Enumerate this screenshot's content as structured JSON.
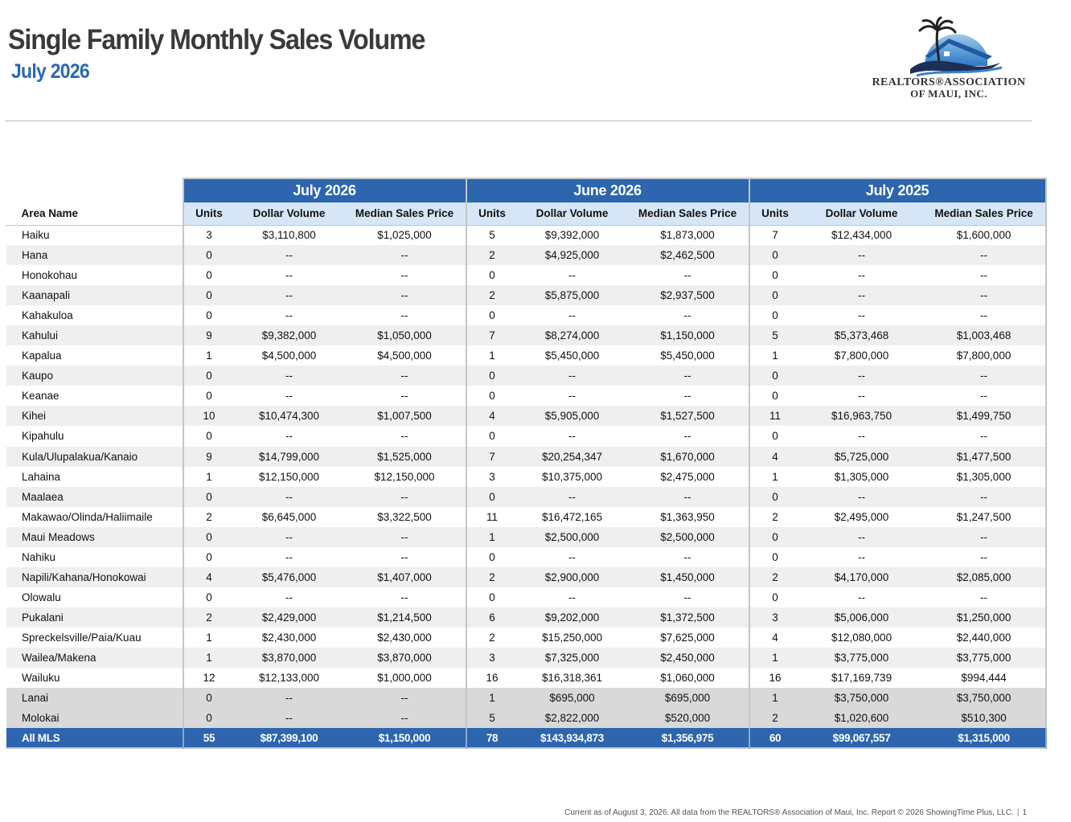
{
  "header": {
    "title": "Single Family Monthly Sales Volume",
    "subtitle": "July 2026"
  },
  "logo": {
    "line1": "REALTORS®ASSOCIATION",
    "line2": "OF MAUI, INC.",
    "icon": "palm-house-wave-logo"
  },
  "table": {
    "area_header": "Area Name",
    "periods": [
      "July 2026",
      "June 2026",
      "July 2025"
    ],
    "column_headers": [
      "Units",
      "Dollar Volume",
      "Median Sales Price"
    ],
    "rows": [
      {
        "area": "Haiku",
        "cells": [
          "3",
          "$3,110,800",
          "$1,025,000",
          "5",
          "$9,392,000",
          "$1,873,000",
          "7",
          "$12,434,000",
          "$1,600,000"
        ]
      },
      {
        "area": "Hana",
        "cells": [
          "0",
          "--",
          "--",
          "2",
          "$4,925,000",
          "$2,462,500",
          "0",
          "--",
          "--"
        ]
      },
      {
        "area": "Honokohau",
        "cells": [
          "0",
          "--",
          "--",
          "0",
          "--",
          "--",
          "0",
          "--",
          "--"
        ]
      },
      {
        "area": "Kaanapali",
        "cells": [
          "0",
          "--",
          "--",
          "2",
          "$5,875,000",
          "$2,937,500",
          "0",
          "--",
          "--"
        ]
      },
      {
        "area": "Kahakuloa",
        "cells": [
          "0",
          "--",
          "--",
          "0",
          "--",
          "--",
          "0",
          "--",
          "--"
        ]
      },
      {
        "area": "Kahului",
        "cells": [
          "9",
          "$9,382,000",
          "$1,050,000",
          "7",
          "$8,274,000",
          "$1,150,000",
          "5",
          "$5,373,468",
          "$1,003,468"
        ]
      },
      {
        "area": "Kapalua",
        "cells": [
          "1",
          "$4,500,000",
          "$4,500,000",
          "1",
          "$5,450,000",
          "$5,450,000",
          "1",
          "$7,800,000",
          "$7,800,000"
        ]
      },
      {
        "area": "Kaupo",
        "cells": [
          "0",
          "--",
          "--",
          "0",
          "--",
          "--",
          "0",
          "--",
          "--"
        ]
      },
      {
        "area": "Keanae",
        "cells": [
          "0",
          "--",
          "--",
          "0",
          "--",
          "--",
          "0",
          "--",
          "--"
        ]
      },
      {
        "area": "Kihei",
        "cells": [
          "10",
          "$10,474,300",
          "$1,007,500",
          "4",
          "$5,905,000",
          "$1,527,500",
          "11",
          "$16,963,750",
          "$1,499,750"
        ]
      },
      {
        "area": "Kipahulu",
        "cells": [
          "0",
          "--",
          "--",
          "0",
          "--",
          "--",
          "0",
          "--",
          "--"
        ]
      },
      {
        "area": "Kula/Ulupalakua/Kanaio",
        "cells": [
          "9",
          "$14,799,000",
          "$1,525,000",
          "7",
          "$20,254,347",
          "$1,670,000",
          "4",
          "$5,725,000",
          "$1,477,500"
        ]
      },
      {
        "area": "Lahaina",
        "cells": [
          "1",
          "$12,150,000",
          "$12,150,000",
          "3",
          "$10,375,000",
          "$2,475,000",
          "1",
          "$1,305,000",
          "$1,305,000"
        ]
      },
      {
        "area": "Maalaea",
        "cells": [
          "0",
          "--",
          "--",
          "0",
          "--",
          "--",
          "0",
          "--",
          "--"
        ]
      },
      {
        "area": "Makawao/Olinda/Haliimaile",
        "cells": [
          "2",
          "$6,645,000",
          "$3,322,500",
          "11",
          "$16,472,165",
          "$1,363,950",
          "2",
          "$2,495,000",
          "$1,247,500"
        ]
      },
      {
        "area": "Maui Meadows",
        "cells": [
          "0",
          "--",
          "--",
          "1",
          "$2,500,000",
          "$2,500,000",
          "0",
          "--",
          "--"
        ]
      },
      {
        "area": "Nahiku",
        "cells": [
          "0",
          "--",
          "--",
          "0",
          "--",
          "--",
          "0",
          "--",
          "--"
        ]
      },
      {
        "area": "Napili/Kahana/Honokowai",
        "cells": [
          "4",
          "$5,476,000",
          "$1,407,000",
          "2",
          "$2,900,000",
          "$1,450,000",
          "2",
          "$4,170,000",
          "$2,085,000"
        ]
      },
      {
        "area": "Olowalu",
        "cells": [
          "0",
          "--",
          "--",
          "0",
          "--",
          "--",
          "0",
          "--",
          "--"
        ]
      },
      {
        "area": "Pukalani",
        "cells": [
          "2",
          "$2,429,000",
          "$1,214,500",
          "6",
          "$9,202,000",
          "$1,372,500",
          "3",
          "$5,006,000",
          "$1,250,000"
        ]
      },
      {
        "area": "Spreckelsville/Paia/Kuau",
        "cells": [
          "1",
          "$2,430,000",
          "$2,430,000",
          "2",
          "$15,250,000",
          "$7,625,000",
          "4",
          "$12,080,000",
          "$2,440,000"
        ]
      },
      {
        "area": "Wailea/Makena",
        "cells": [
          "1",
          "$3,870,000",
          "$3,870,000",
          "3",
          "$7,325,000",
          "$2,450,000",
          "1",
          "$3,775,000",
          "$3,775,000"
        ]
      },
      {
        "area": "Wailuku",
        "cells": [
          "12",
          "$12,133,000",
          "$1,000,000",
          "16",
          "$16,318,361",
          "$1,060,000",
          "16",
          "$17,169,739",
          "$994,444"
        ]
      },
      {
        "area": "Lanai",
        "cells": [
          "0",
          "--",
          "--",
          "1",
          "$695,000",
          "$695,000",
          "1",
          "$3,750,000",
          "$3,750,000"
        ]
      },
      {
        "area": "Molokai",
        "cells": [
          "0",
          "--",
          "--",
          "5",
          "$2,822,000",
          "$520,000",
          "2",
          "$1,020,600",
          "$510,300"
        ]
      }
    ],
    "total": {
      "area": "All MLS",
      "cells": [
        "55",
        "$87,399,100",
        "$1,150,000",
        "78",
        "$143,934,873",
        "$1,356,975",
        "60",
        "$99,067,557",
        "$1,315,000"
      ]
    }
  },
  "footer": {
    "text": "Current as of August 3, 2026. All data from the REALTORS® Association of Maui, Inc. Report © 2026 ShowingTime Plus, LLC.",
    "page": "1"
  },
  "colors": {
    "header_blue": "#2d65ae",
    "subheader_blue": "#d6e6f6",
    "subtitle_blue": "#2b67b2",
    "stripe_gray": "#efefef",
    "island_gray": "#d9d9d9"
  }
}
